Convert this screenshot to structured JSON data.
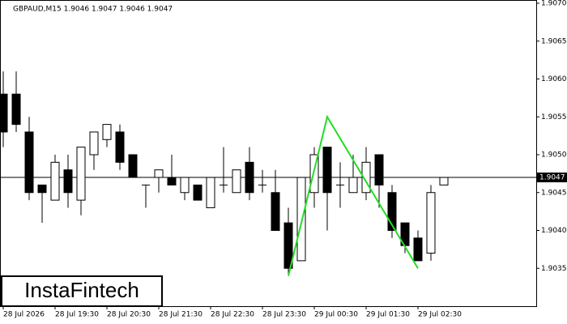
{
  "chart_data": {
    "type": "candlestick",
    "header": "GBPAUD,M15  1.9046 1.9047 1.9046 1.9047",
    "watermark": "InstaFintech",
    "categories": [
      "28 Jul 2026",
      null,
      null,
      null,
      "28 Jul 19:30",
      null,
      null,
      null,
      "28 Jul 20:30",
      null,
      null,
      null,
      "28 Jul 21:30",
      null,
      null,
      null,
      "28 Jul 22:30",
      null,
      null,
      null,
      "28 Jul 23:30",
      null,
      null,
      null,
      "29 Jul 00:30",
      null,
      null,
      null,
      "29 Jul 01:30",
      null,
      null,
      null,
      "29 Jul 02:30",
      null,
      null
    ],
    "open": [
      1.9058,
      1.9058,
      1.9053,
      1.9046,
      1.9044,
      1.9048,
      1.9044,
      1.905,
      1.9052,
      1.9053,
      1.905,
      1.9046,
      1.9047,
      1.9047,
      1.9045,
      1.9046,
      1.9043,
      1.9046,
      1.9045,
      1.9049,
      1.9046,
      1.9045,
      1.9041,
      1.9036,
      1.9045,
      1.9051,
      1.9046,
      1.9045,
      1.9045,
      1.905,
      1.9045,
      1.9041,
      1.9039,
      1.9037,
      1.9046
    ],
    "high": [
      1.9061,
      1.9061,
      1.9055,
      1.9046,
      1.905,
      1.905,
      1.9051,
      1.9053,
      1.9054,
      1.9054,
      1.905,
      1.9046,
      1.9048,
      1.905,
      1.9047,
      1.9046,
      1.9047,
      1.9051,
      1.9048,
      1.9051,
      1.9048,
      1.9048,
      1.9043,
      1.9047,
      1.9051,
      1.9051,
      1.9049,
      1.905,
      1.9051,
      1.905,
      1.9046,
      1.9041,
      1.904,
      1.9046,
      1.9047
    ],
    "low": [
      1.9051,
      1.9053,
      1.9044,
      1.9041,
      1.9044,
      1.9043,
      1.9042,
      1.9048,
      1.9051,
      1.9048,
      1.9047,
      1.9043,
      1.9045,
      1.9046,
      1.9044,
      1.9044,
      1.9043,
      1.9045,
      1.9045,
      1.9044,
      1.9045,
      1.904,
      1.9034,
      1.9036,
      1.9043,
      1.904,
      1.9043,
      1.9045,
      1.9044,
      1.9043,
      1.9039,
      1.9037,
      1.9036,
      1.9036,
      1.9046
    ],
    "close": [
      1.9053,
      1.9054,
      1.9045,
      1.9045,
      1.9049,
      1.9045,
      1.9051,
      1.9053,
      1.9054,
      1.9049,
      1.9047,
      1.9046,
      1.9048,
      1.9046,
      1.9047,
      1.9044,
      1.9047,
      1.9046,
      1.9048,
      1.9045,
      1.9046,
      1.904,
      1.9035,
      1.9047,
      1.905,
      1.9045,
      1.9046,
      1.9047,
      1.9049,
      1.9046,
      1.904,
      1.9038,
      1.9036,
      1.9045,
      1.9047
    ],
    "up_color": "#ffffff",
    "down_color": "#000000",
    "pattern": {
      "color": "#22dd22",
      "x": [
        22,
        25,
        32
      ],
      "values": [
        1.9034,
        1.9055,
        1.9035
      ]
    },
    "last_price": 1.9047,
    "ylim": [
      1.903,
      1.907
    ],
    "yticks": [
      {
        "value": 1.907,
        "label": "1.9070"
      },
      {
        "value": 1.9065,
        "label": "1.9065"
      },
      {
        "value": 1.906,
        "label": "1.9060"
      },
      {
        "value": 1.9055,
        "label": "1.9055"
      },
      {
        "value": 1.905,
        "label": "1.9050"
      },
      {
        "value": 1.9045,
        "label": "1.9045"
      },
      {
        "value": 1.904,
        "label": "1.9040"
      },
      {
        "value": 1.9035,
        "label": "1.9035"
      }
    ]
  }
}
